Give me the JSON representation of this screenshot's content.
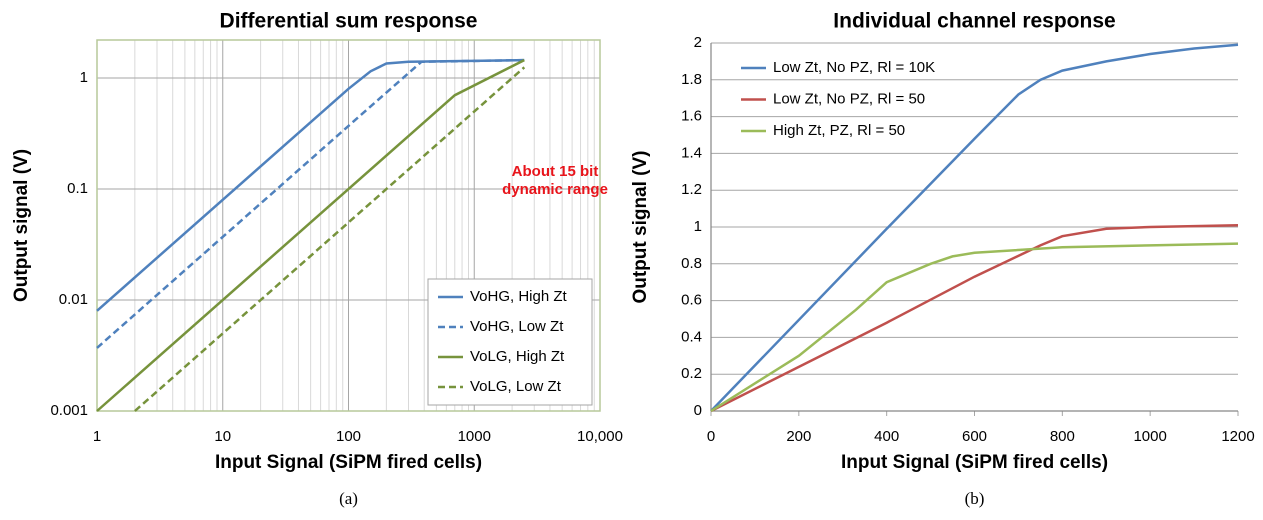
{
  "chart_data": [
    {
      "type": "line",
      "title": "Differential sum response",
      "x_label": "Input Signal (SiPM fired cells)",
      "y_label": "Output signal (V)",
      "caption": "(a)",
      "annotations": [
        "About 15 bit",
        "dynamic range"
      ],
      "xscale": "log",
      "yscale": "log",
      "xlim": [
        1,
        10000
      ],
      "ylim": [
        0.001,
        2.2
      ],
      "xticks": [
        1,
        10,
        100,
        1000,
        {
          "value": 10000,
          "label": "10,000"
        }
      ],
      "yticks": [
        0.001,
        0.01,
        0.1,
        1
      ],
      "xgrid": true,
      "ygrid": true,
      "minor_grid": true,
      "frame": true,
      "legend": "lower right",
      "series": [
        {
          "name": "VoHG, High Zt",
          "color": "#4f81bd",
          "dash": false,
          "x": [
            1,
            100,
            150,
            200,
            300,
            2500
          ],
          "values": [
            0.008,
            0.8,
            1.15,
            1.35,
            1.4,
            1.45
          ]
        },
        {
          "name": "VoHG, Low Zt",
          "color": "#4f81bd",
          "dash": true,
          "x": [
            1,
            100,
            380,
            2500
          ],
          "values": [
            0.0037,
            0.37,
            1.4,
            1.45
          ]
        },
        {
          "name": "VoLG, High Zt",
          "color": "#77933c",
          "dash": false,
          "x": [
            1,
            600,
            700,
            2500
          ],
          "values": [
            0.001,
            0.6,
            0.7,
            1.45
          ]
        },
        {
          "name": "VoLG, Low Zt",
          "color": "#77933c",
          "dash": true,
          "x": [
            2,
            2500
          ],
          "values": [
            0.001,
            1.25
          ]
        }
      ]
    },
    {
      "type": "line",
      "title": "Individual channel response",
      "x_label": "Input Signal (SiPM fired cells)",
      "y_label": "Output signal (V)",
      "caption": "(b)",
      "xscale": "linear",
      "yscale": "linear",
      "xlim": [
        0,
        1200
      ],
      "ylim": [
        0,
        2
      ],
      "xticks": [
        0,
        200,
        400,
        600,
        800,
        1000,
        1200
      ],
      "yticks": [
        0,
        0.2,
        0.4,
        0.6,
        0.8,
        1,
        1.2,
        1.4,
        1.6,
        1.8,
        2
      ],
      "xgrid": false,
      "ygrid": true,
      "minor_grid": false,
      "frame": false,
      "legend": "upper left",
      "series": [
        {
          "name": "Low Zt, No PZ, Rl = 10K",
          "color": "#4f81bd",
          "dash": false,
          "x": [
            0,
            400,
            600,
            700,
            750,
            800,
            900,
            1000,
            1100,
            1200
          ],
          "values": [
            0,
            0.99,
            1.48,
            1.72,
            1.8,
            1.85,
            1.9,
            1.94,
            1.97,
            1.99
          ]
        },
        {
          "name": "Low Zt, No PZ, Rl = 50",
          "color": "#c0504d",
          "dash": false,
          "x": [
            0,
            400,
            600,
            750,
            800,
            900,
            1000,
            1200
          ],
          "values": [
            0,
            0.48,
            0.73,
            0.9,
            0.95,
            0.99,
            1.0,
            1.01
          ]
        },
        {
          "name": "High Zt, PZ, Rl = 50",
          "color": "#9bbb59",
          "dash": false,
          "x": [
            0,
            200,
            330,
            400,
            500,
            550,
            600,
            800,
            1000,
            1200
          ],
          "values": [
            0,
            0.3,
            0.55,
            0.7,
            0.8,
            0.84,
            0.86,
            0.89,
            0.9,
            0.91
          ]
        }
      ]
    }
  ]
}
